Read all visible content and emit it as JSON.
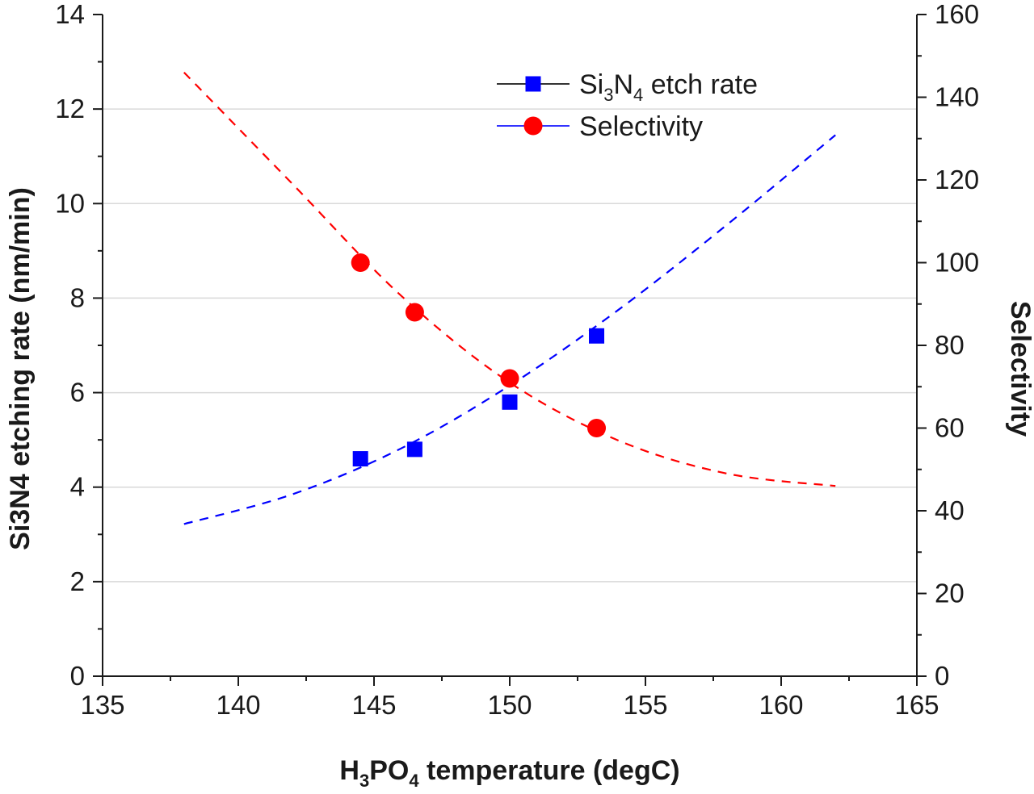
{
  "chart_data": {
    "type": "scatter",
    "xlabel_parts": [
      "H",
      "3",
      "PO",
      "4",
      " temperature (degC)"
    ],
    "ylabel": "Si3N4 etching rate (nm/min)",
    "y2label": "Selectivity",
    "xlim": [
      135,
      165
    ],
    "ylim": [
      0,
      14
    ],
    "y2lim": [
      0,
      160
    ],
    "xticks": [
      135,
      140,
      145,
      150,
      155,
      160,
      165
    ],
    "yticks": [
      0,
      2,
      4,
      6,
      8,
      10,
      12,
      14
    ],
    "y2ticks": [
      0,
      20,
      40,
      60,
      80,
      100,
      120,
      140,
      160
    ],
    "grid": "horizontal",
    "legend_position": "top-right",
    "series": [
      {
        "name": "Si3N4 etch rate",
        "legend_parts": [
          "Si",
          "3",
          "N",
          "4",
          " etch rate"
        ],
        "axis": "left",
        "marker": "square",
        "color": "#0000ff",
        "legend_line_color": "#333333",
        "x": [
          144.5,
          146.5,
          150.0,
          153.2
        ],
        "y": [
          4.6,
          4.8,
          5.8,
          7.2
        ]
      },
      {
        "name": "Selectivity",
        "legend_parts": [
          "Selectivity"
        ],
        "axis": "right",
        "marker": "circle",
        "color": "#ff0000",
        "legend_line_color": "#3333ff",
        "x": [
          144.5,
          146.5,
          150.0,
          153.2
        ],
        "y": [
          100,
          88,
          72,
          60
        ]
      }
    ],
    "fits": [
      {
        "name": "etch-rate-fit",
        "axis": "left",
        "color": "#0000ff",
        "style": "dashed",
        "x": [
          138,
          142,
          146,
          150,
          154,
          158,
          162
        ],
        "y": [
          3.22,
          3.85,
          4.82,
          6.15,
          7.75,
          9.55,
          11.45
        ]
      },
      {
        "name": "selectivity-fit",
        "axis": "right",
        "color": "#ff0000",
        "style": "dashed",
        "x": [
          138,
          142,
          146,
          150,
          154,
          158,
          162
        ],
        "y": [
          146,
          119,
          92,
          71,
          57,
          49,
          46
        ]
      }
    ]
  }
}
